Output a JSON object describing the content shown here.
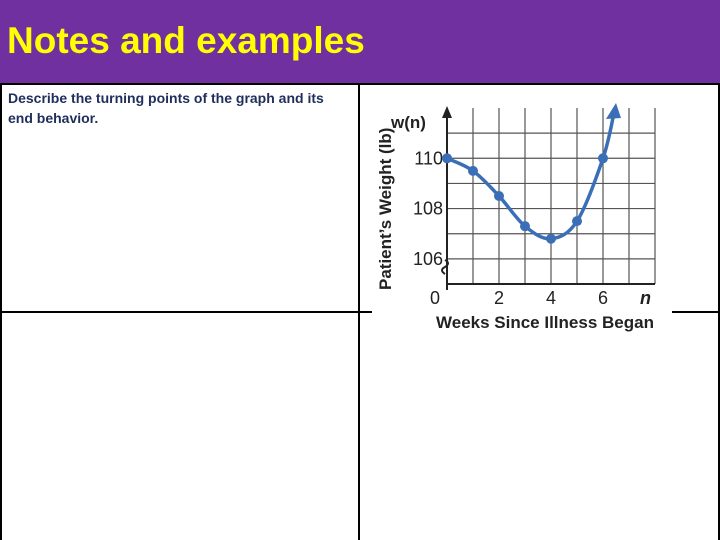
{
  "slide": {
    "title": "Notes and examples",
    "prompt": "Describe the turning points of the graph and its end behavior."
  },
  "colors": {
    "title_bg": "#7030a0",
    "title_text": "#ffff00",
    "curve": "#3a6fb8"
  },
  "chart_data": {
    "type": "line",
    "function_label": "w(n)",
    "ylabel": "Patient’s Weight (lb)",
    "xlabel": "Weeks Since Illness Began",
    "x_axis_var": "n",
    "x_ticks": [
      "0",
      "2",
      "4",
      "6"
    ],
    "y_ticks": [
      "106",
      "108",
      "110"
    ],
    "xlim": [
      0,
      8
    ],
    "ylim": [
      105,
      112
    ],
    "grid": true,
    "points": [
      {
        "x": 0,
        "y": 110
      },
      {
        "x": 1,
        "y": 109.5
      },
      {
        "x": 2,
        "y": 108.5
      },
      {
        "x": 3,
        "y": 107.3
      },
      {
        "x": 4,
        "y": 106.8
      },
      {
        "x": 5,
        "y": 107.5
      },
      {
        "x": 6,
        "y": 110
      }
    ],
    "end_arrow": true
  }
}
